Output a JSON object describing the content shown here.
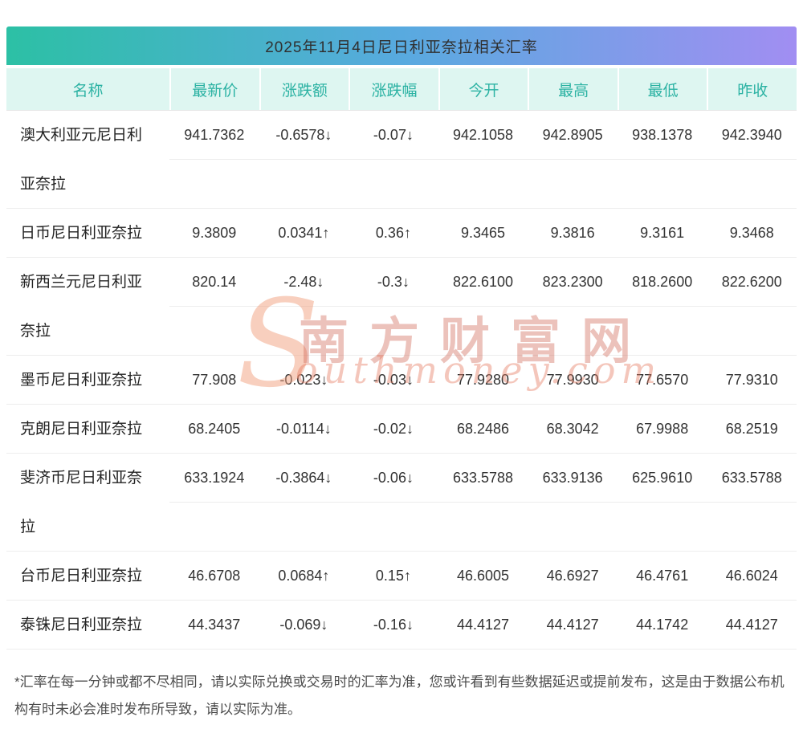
{
  "title": "2025年11月4日尼日利亚奈拉相关汇率",
  "colors": {
    "gradient_left": "#2cc0a5",
    "gradient_right": "#a18ef2",
    "header_bg": "#def6f1",
    "header_teal": "#2bb2a3",
    "up_red": "#e80000",
    "down_green": "#12a012"
  },
  "table": {
    "headers": [
      "名称",
      "最新价",
      "涨跌额",
      "涨跌幅",
      "今开",
      "最高",
      "最低",
      "昨收"
    ],
    "rows": [
      {
        "name": "澳大利亚元尼日利亚奈拉",
        "latest": "941.7362",
        "change": "-0.6578↓",
        "pct": "-0.07↓",
        "open": "942.1058",
        "high": "942.8905",
        "low": "938.1378",
        "prev": "942.3940",
        "trend": "down"
      },
      {
        "name": "日币尼日利亚奈拉",
        "latest": "9.3809",
        "change": "0.0341↑",
        "pct": "0.36↑",
        "open": "9.3465",
        "high": "9.3816",
        "low": "9.3161",
        "prev": "9.3468",
        "trend": "up"
      },
      {
        "name": "新西兰元尼日利亚奈拉",
        "latest": "820.14",
        "change": "-2.48↓",
        "pct": "-0.3↓",
        "open": "822.6100",
        "high": "823.2300",
        "low": "818.2600",
        "prev": "822.6200",
        "trend": "down"
      },
      {
        "name": "墨币尼日利亚奈拉",
        "latest": "77.908",
        "change": "-0.023↓",
        "pct": "-0.03↓",
        "open": "77.9280",
        "high": "77.9930",
        "low": "77.6570",
        "prev": "77.9310",
        "trend": "down"
      },
      {
        "name": "克朗尼日利亚奈拉",
        "latest": "68.2405",
        "change": "-0.0114↓",
        "pct": "-0.02↓",
        "open": "68.2486",
        "high": "68.3042",
        "low": "67.9988",
        "prev": "68.2519",
        "trend": "down"
      },
      {
        "name": "斐济币尼日利亚奈拉",
        "latest": "633.1924",
        "change": "-0.3864↓",
        "pct": "-0.06↓",
        "open": "633.5788",
        "high": "633.9136",
        "low": "625.9610",
        "prev": "633.5788",
        "trend": "down"
      },
      {
        "name": "台币尼日利亚奈拉",
        "latest": "46.6708",
        "change": "0.0684↑",
        "pct": "0.15↑",
        "open": "46.6005",
        "high": "46.6927",
        "low": "46.4761",
        "prev": "46.6024",
        "trend": "up"
      },
      {
        "name": "泰铢尼日利亚奈拉",
        "latest": "44.3437",
        "change": "-0.069↓",
        "pct": "-0.16↓",
        "open": "44.4127",
        "high": "44.4127",
        "low": "44.1742",
        "prev": "44.4127",
        "trend": "down"
      }
    ]
  },
  "watermark": {
    "initial": "S",
    "cn": "南方财富网",
    "domain": "outhmoney.com"
  },
  "footnote": "*汇率在每一分钟或都不尽相同，请以实际兑换或交易时的汇率为准，您或许看到有些数据延迟或提前发布，这是由于数据公布机构有时未必会准时发布所导致，请以实际为准。"
}
